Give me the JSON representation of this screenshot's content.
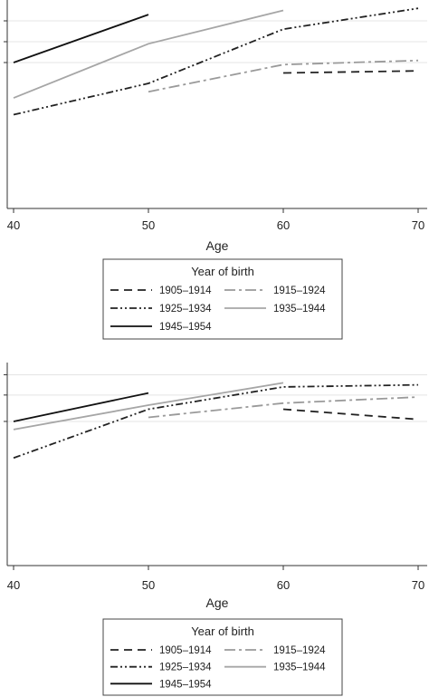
{
  "chart_data": [
    {
      "type": "line",
      "xlabel": "Age",
      "x_ticks": [
        40,
        50,
        60,
        70
      ],
      "xlim": [
        40,
        70
      ],
      "ylim": [
        0,
        100
      ],
      "gridlines_y": [
        90,
        80,
        70
      ],
      "legend": {
        "title": "Year of birth",
        "placement": "below"
      },
      "series": [
        {
          "name": "1905–1914",
          "style": "dash",
          "color": "#222222",
          "points": [
            [
              60,
              65
            ],
            [
              70,
              66
            ]
          ]
        },
        {
          "name": "1915–1924",
          "style": "dashdot",
          "color": "#9a9a9a",
          "points": [
            [
              50,
              56
            ],
            [
              60,
              69
            ],
            [
              70,
              71
            ]
          ]
        },
        {
          "name": "1925–1934",
          "style": "dashdotdot",
          "color": "#222222",
          "points": [
            [
              40,
              45
            ],
            [
              50,
              60
            ],
            [
              60,
              86
            ],
            [
              70,
              96
            ]
          ]
        },
        {
          "name": "1935–1944",
          "style": "solid",
          "color": "#a6a6a6",
          "points": [
            [
              40,
              53
            ],
            [
              50,
              79
            ],
            [
              60,
              95
            ]
          ]
        },
        {
          "name": "1945–1954",
          "style": "solid",
          "color": "#111111",
          "points": [
            [
              40,
              70
            ],
            [
              50,
              93
            ]
          ]
        }
      ]
    },
    {
      "type": "line",
      "xlabel": "Age",
      "x_ticks": [
        40,
        50,
        60,
        70
      ],
      "xlim": [
        40,
        70
      ],
      "ylim": [
        0,
        100
      ],
      "gridlines_y": [
        94,
        84,
        71
      ],
      "legend": {
        "title": "Year of birth",
        "placement": "below"
      },
      "series": [
        {
          "name": "1905–1914",
          "style": "dash",
          "color": "#222222",
          "points": [
            [
              60,
              77
            ],
            [
              70,
              72
            ]
          ]
        },
        {
          "name": "1915–1924",
          "style": "dashdot",
          "color": "#9a9a9a",
          "points": [
            [
              50,
              73
            ],
            [
              60,
              80
            ],
            [
              70,
              83
            ]
          ]
        },
        {
          "name": "1925–1934",
          "style": "dashdotdot",
          "color": "#222222",
          "points": [
            [
              40,
              53
            ],
            [
              50,
              77
            ],
            [
              60,
              88
            ],
            [
              70,
              89
            ]
          ]
        },
        {
          "name": "1935–1944",
          "style": "solid",
          "color": "#a6a6a6",
          "points": [
            [
              40,
              67
            ],
            [
              50,
              79
            ],
            [
              60,
              90
            ]
          ]
        },
        {
          "name": "1945–1954",
          "style": "solid",
          "color": "#111111",
          "points": [
            [
              40,
              71
            ],
            [
              50,
              85
            ]
          ]
        }
      ]
    }
  ]
}
